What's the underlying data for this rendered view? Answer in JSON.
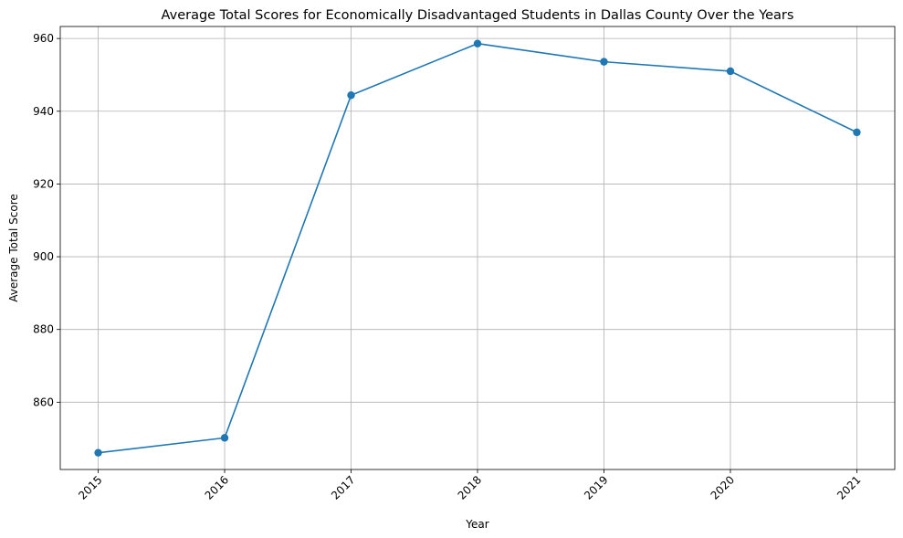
{
  "chart_data": {
    "type": "line",
    "title": "Average Total Scores for Economically Disadvantaged Students in Dallas County Over the Years",
    "xlabel": "Year",
    "ylabel": "Average Total Score",
    "x": [
      "2015",
      "2016",
      "2017",
      "2018",
      "2019",
      "2020",
      "2021"
    ],
    "series": [
      {
        "values": [
          846.1,
          850.2,
          944.4,
          958.6,
          953.6,
          951.0,
          934.2
        ]
      }
    ],
    "ylim": [
      841.5,
      963.3
    ],
    "yticks": [
      860,
      880,
      900,
      920,
      940,
      960
    ],
    "grid": true,
    "marker": "circle",
    "x_tick_rotation": 45,
    "colors": {
      "line": "#1f77b4"
    }
  }
}
